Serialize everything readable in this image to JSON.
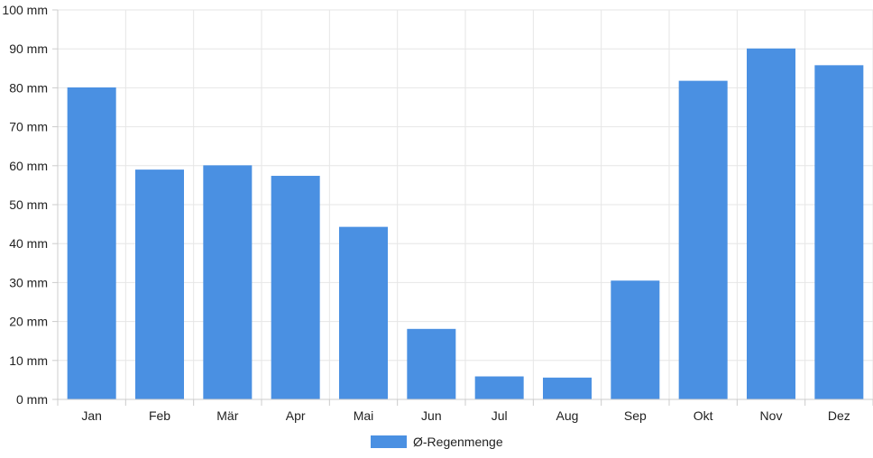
{
  "chart_data": {
    "type": "bar",
    "categories": [
      "Jan",
      "Feb",
      "Mär",
      "Apr",
      "Mai",
      "Jun",
      "Jul",
      "Aug",
      "Sep",
      "Okt",
      "Nov",
      "Dez"
    ],
    "series": [
      {
        "name": "Ø-Regenmenge",
        "color": "#4a90e2",
        "values": [
          80.1,
          59.0,
          60.1,
          57.4,
          44.3,
          18.1,
          5.9,
          5.6,
          30.5,
          81.8,
          90.1,
          85.8
        ]
      }
    ],
    "ylim": [
      0,
      100
    ],
    "y_ticks": [
      "0 mm",
      "10 mm",
      "20 mm",
      "30 mm",
      "40 mm",
      "50 mm",
      "60 mm",
      "70 mm",
      "80 mm",
      "90 mm",
      "100 mm"
    ],
    "y_tick_values": [
      0,
      10,
      20,
      30,
      40,
      50,
      60,
      70,
      80,
      90,
      100
    ],
    "grid": true,
    "legend_position": "bottom-center"
  }
}
